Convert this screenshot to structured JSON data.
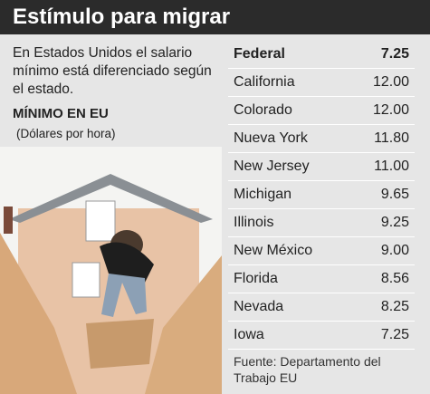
{
  "header": {
    "title": "Estímulo para migrar"
  },
  "intro": "En Estados Unidos el salario mínimo está diferenciado según el estado.",
  "subtitle": "MÍNIMO EN EU",
  "unit": "(Dólares por hora)",
  "table": {
    "rows": [
      [
        "Federal",
        "7.25"
      ],
      [
        "California",
        "12.00"
      ],
      [
        "Colorado",
        "12.00"
      ],
      [
        "Nueva York",
        "11.80"
      ],
      [
        "New Jersey",
        "11.00"
      ],
      [
        "Michigan",
        "9.65"
      ],
      [
        "Illinois",
        "9.25"
      ],
      [
        "New México",
        "9.00"
      ],
      [
        "Florida",
        "8.56"
      ],
      [
        "Nevada",
        "8.25"
      ],
      [
        "Iowa",
        "7.25"
      ]
    ]
  },
  "source": "Fuente: Departamento del Trabajo EU"
}
